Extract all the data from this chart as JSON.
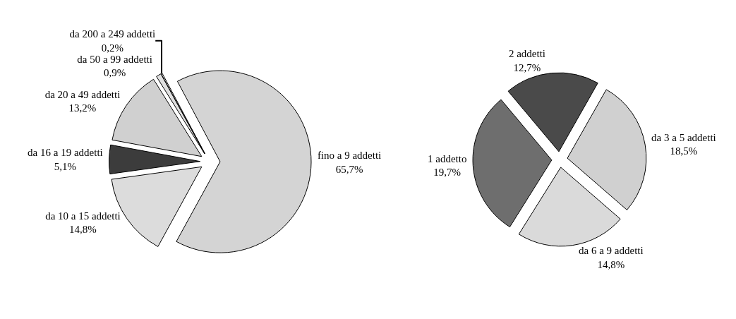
{
  "chart_data": [
    {
      "type": "pie",
      "categories": [
        "fino a 9 addetti",
        "da 10 a 15 addetti",
        "da 16 a 19 addetti",
        "da 20 a 49 addetti",
        "da 50 a 99 addetti",
        "da 200 a 249 addetti"
      ],
      "values": [
        65.7,
        14.8,
        5.1,
        13.2,
        0.9,
        0.2
      ],
      "value_labels": [
        "65,7%",
        "14,8%",
        "5,1%",
        "13,2%",
        "0,9%",
        "0,2%"
      ],
      "colors": [
        "#d4d4d4",
        "#dcdcdc",
        "#3c3c3c",
        "#d0d0d0",
        "#e0e0e0",
        "#f0f0f0"
      ],
      "legend": false
    },
    {
      "type": "pie",
      "categories": [
        "2 addetti",
        "da 3 a 5 addetti",
        "da 6 a 9 addetti",
        "1 addetto"
      ],
      "values": [
        12.7,
        18.5,
        14.8,
        19.7
      ],
      "value_labels": [
        "12,7%",
        "18,5%",
        "14,8%",
        "19,7%"
      ],
      "colors": [
        "#4a4a4a",
        "#d0d0d0",
        "#dadada",
        "#6e6e6e"
      ],
      "legend": false
    }
  ]
}
